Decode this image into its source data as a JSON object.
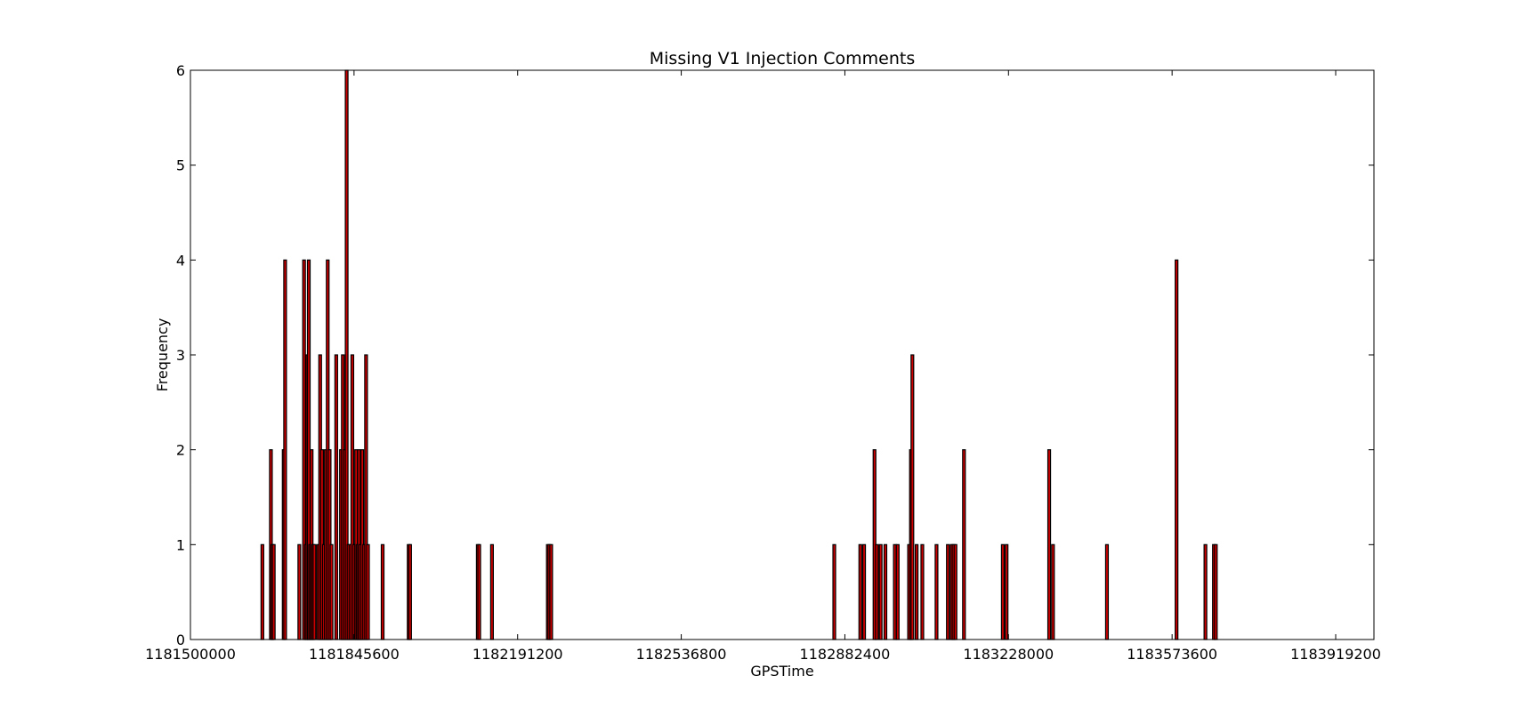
{
  "chart_data": {
    "type": "bar",
    "title": "Missing V1 Injection Comments",
    "xlabel": "GPSTime",
    "ylabel": "Frequency",
    "xlim": [
      1181500000,
      1184000000
    ],
    "ylim": [
      0,
      6
    ],
    "xticks": [
      1181500000,
      1181845600,
      1182191200,
      1182536800,
      1182882400,
      1183228000,
      1183573600,
      1183919200
    ],
    "xtick_labels": [
      "1181500000",
      "1181845600",
      "1182191200",
      "1182536800",
      "1182882400",
      "1183228000",
      "1183573600",
      "1183919200"
    ],
    "yticks": [
      0,
      1,
      2,
      3,
      4,
      5,
      6
    ],
    "ytick_labels": [
      "0",
      "1",
      "2",
      "3",
      "4",
      "5",
      "6"
    ],
    "grid": false,
    "colors": {
      "edge": "#000000",
      "fill": "#cc0000",
      "background": "#ffffff"
    },
    "series": [
      {
        "points": [
          [
            1181652000,
            1
          ],
          [
            1181670000,
            2
          ],
          [
            1181673000,
            1
          ],
          [
            1181676000,
            1
          ],
          [
            1181697000,
            2
          ],
          [
            1181700000,
            4
          ],
          [
            1181730000,
            1
          ],
          [
            1181740000,
            4
          ],
          [
            1181744000,
            1
          ],
          [
            1181747000,
            3
          ],
          [
            1181750000,
            4
          ],
          [
            1181753000,
            1
          ],
          [
            1181756000,
            2
          ],
          [
            1181759000,
            1
          ],
          [
            1181762000,
            1
          ],
          [
            1181770000,
            1
          ],
          [
            1181774000,
            3
          ],
          [
            1181778000,
            2
          ],
          [
            1181782000,
            1
          ],
          [
            1181786000,
            2
          ],
          [
            1181790000,
            4
          ],
          [
            1181794000,
            2
          ],
          [
            1181798000,
            1
          ],
          [
            1181808000,
            3
          ],
          [
            1181818000,
            2
          ],
          [
            1181822000,
            3
          ],
          [
            1181826000,
            2
          ],
          [
            1181830000,
            6
          ],
          [
            1181834000,
            1
          ],
          [
            1181838000,
            1
          ],
          [
            1181842000,
            3
          ],
          [
            1181846000,
            1
          ],
          [
            1181850000,
            2
          ],
          [
            1181853000,
            1
          ],
          [
            1181856000,
            2
          ],
          [
            1181859000,
            1
          ],
          [
            1181863000,
            2
          ],
          [
            1181867000,
            1
          ],
          [
            1181871000,
            3
          ],
          [
            1181875000,
            1
          ],
          [
            1181906000,
            1
          ],
          [
            1181961000,
            1
          ],
          [
            1181964000,
            1
          ],
          [
            1182107000,
            1
          ],
          [
            1182110000,
            1
          ],
          [
            1182137000,
            1
          ],
          [
            1182255000,
            1
          ],
          [
            1182258000,
            1
          ],
          [
            1182262000,
            1
          ],
          [
            1182860000,
            1
          ],
          [
            1182915000,
            1
          ],
          [
            1182923000,
            1
          ],
          [
            1182945000,
            2
          ],
          [
            1182950000,
            1
          ],
          [
            1182958000,
            1
          ],
          [
            1182968000,
            1
          ],
          [
            1182988000,
            1
          ],
          [
            1182994000,
            1
          ],
          [
            1183018000,
            1
          ],
          [
            1183022000,
            2
          ],
          [
            1183025000,
            3
          ],
          [
            1183034000,
            1
          ],
          [
            1183046000,
            1
          ],
          [
            1183076000,
            1
          ],
          [
            1183100000,
            1
          ],
          [
            1183108000,
            1
          ],
          [
            1183112000,
            1
          ],
          [
            1183116000,
            1
          ],
          [
            1183134000,
            2
          ],
          [
            1183216000,
            1
          ],
          [
            1183224000,
            1
          ],
          [
            1183314000,
            2
          ],
          [
            1183322000,
            1
          ],
          [
            1183436000,
            1
          ],
          [
            1183583000,
            4
          ],
          [
            1183644000,
            1
          ],
          [
            1183662000,
            1
          ],
          [
            1183666000,
            1
          ]
        ]
      }
    ]
  }
}
